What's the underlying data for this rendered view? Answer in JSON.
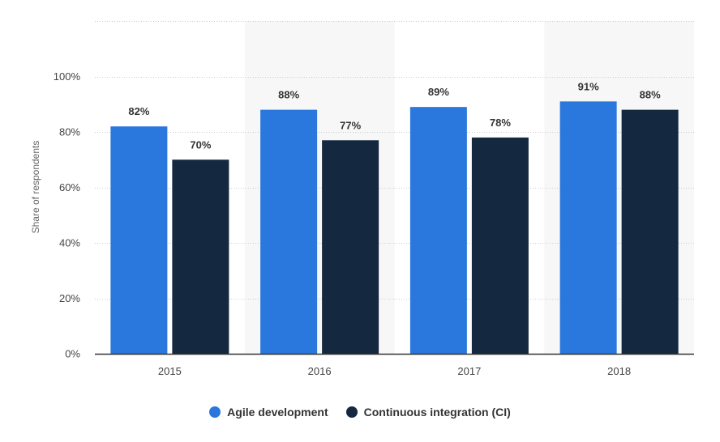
{
  "colors": {
    "agile": "#2a77dd",
    "ci": "#14283f",
    "band": "#f7f7f7",
    "grid": "#cccccc",
    "axis": "#333333"
  },
  "chart_data": {
    "type": "bar",
    "categories": [
      "2015",
      "2016",
      "2017",
      "2018"
    ],
    "series": [
      {
        "name": "Agile development",
        "values": [
          82,
          88,
          89,
          91
        ],
        "labels": [
          "82%",
          "88%",
          "89%",
          "91%"
        ],
        "color": "#2a77dd"
      },
      {
        "name": "Continuous integration (CI)",
        "values": [
          70,
          77,
          78,
          88
        ],
        "labels": [
          "70%",
          "77%",
          "78%",
          "88%"
        ],
        "color": "#14283f"
      }
    ],
    "ylabel": "Share of respondents",
    "ylim": [
      0,
      120
    ],
    "yticks": [
      0,
      20,
      40,
      60,
      80,
      100
    ],
    "ytick_labels": [
      "0%",
      "20%",
      "40%",
      "60%",
      "80%",
      "100%"
    ],
    "grid": true,
    "legend_position": "bottom-center"
  },
  "legend": {
    "items": [
      {
        "label": "Agile development",
        "color": "#2a77dd"
      },
      {
        "label": "Continuous integration (CI)",
        "color": "#14283f"
      }
    ]
  }
}
